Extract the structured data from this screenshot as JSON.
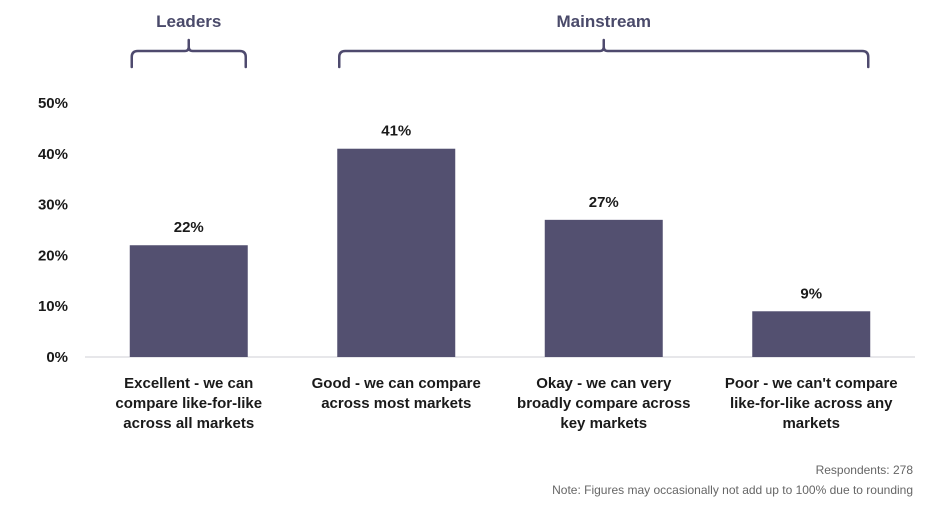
{
  "chart_data": {
    "type": "bar",
    "categories": [
      [
        "Excellent - we can",
        "compare like-for-like",
        "across all markets"
      ],
      [
        "Good - we can compare",
        "across most markets"
      ],
      [
        "Okay - we can very",
        "broadly compare across",
        "key markets"
      ],
      [
        "Poor - we can't compare",
        "like-for-like across any",
        "markets"
      ]
    ],
    "values": [
      22,
      41,
      27,
      9
    ],
    "value_labels": [
      "22%",
      "41%",
      "27%",
      "9%"
    ],
    "yticks": [
      "0%",
      "10%",
      "20%",
      "30%",
      "40%",
      "50%"
    ],
    "ylim": [
      0,
      50
    ],
    "grid": false,
    "bar_color": "#535070",
    "groups": [
      {
        "label": "Leaders",
        "from": 0,
        "to": 0
      },
      {
        "label": "Mainstream",
        "from": 1,
        "to": 3
      }
    ]
  },
  "footer": {
    "respondents": "Respondents: 278",
    "note": "Note: Figures may occasionally not add up to 100% due to rounding"
  }
}
